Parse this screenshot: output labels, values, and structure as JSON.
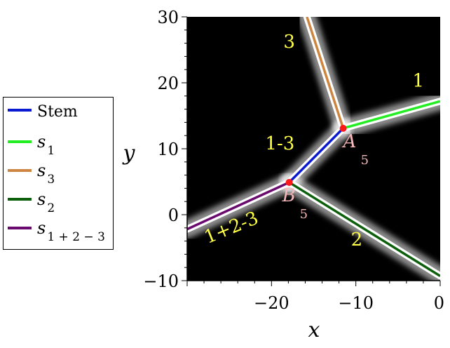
{
  "chart_data": {
    "type": "line",
    "title": "",
    "xlabel": "x",
    "ylabel": "y",
    "xlim": [
      -30,
      0
    ],
    "ylim": [
      -10,
      30
    ],
    "x_ticks": [
      -20,
      -10,
      0
    ],
    "x_tick_labels": [
      "−20",
      "−10",
      "0"
    ],
    "y_ticks": [
      -10,
      0,
      10,
      20,
      30
    ],
    "y_tick_labels": [
      "−10",
      "0",
      "10",
      "20",
      "30"
    ],
    "background": "#000000",
    "grid": false,
    "legend_position": "left",
    "series": [
      {
        "name": "Stem",
        "label_sub": "",
        "color": "#0a1ad0",
        "points": [
          [
            -17.9,
            4.9
          ],
          [
            -11.5,
            13.1
          ]
        ]
      },
      {
        "name": "s",
        "label_sub": "1",
        "color": "#22ee22",
        "points": [
          [
            -11.5,
            13.1
          ],
          [
            0,
            17.2
          ]
        ]
      },
      {
        "name": "s",
        "label_sub": "3",
        "color": "#cd853f",
        "points": [
          [
            -11.5,
            13.1
          ],
          [
            -15.8,
            30
          ]
        ]
      },
      {
        "name": "s",
        "label_sub": "2",
        "color": "#0c600c",
        "points": [
          [
            -17.9,
            4.9
          ],
          [
            0,
            -9.3
          ]
        ]
      },
      {
        "name": "s",
        "label_sub": "1 + 2 − 3",
        "color": "#6a0a6e",
        "points": [
          [
            -17.9,
            4.9
          ],
          [
            -30,
            -2.2
          ]
        ]
      }
    ],
    "points": [
      {
        "name": "A",
        "sub": "5",
        "x": -11.5,
        "y": 13.1,
        "color": "#ff1a1a"
      },
      {
        "name": "B",
        "sub": "5",
        "x": -17.9,
        "y": 4.9,
        "color": "#ff1a1a"
      }
    ],
    "annotations": [
      {
        "text": "3",
        "x": -17.9,
        "y": 25.3,
        "color": "#ffff44"
      },
      {
        "text": "1",
        "x": -2.6,
        "y": 19.4,
        "color": "#ffff44"
      },
      {
        "text": "1-3",
        "x": -19.0,
        "y": 9.9,
        "color": "#ffff44"
      },
      {
        "text": "1+2-3",
        "x": -24.5,
        "y": -2.8,
        "color": "#ffff44"
      },
      {
        "text": "2",
        "x": -9.9,
        "y": -4.7,
        "color": "#ffff44"
      }
    ]
  }
}
